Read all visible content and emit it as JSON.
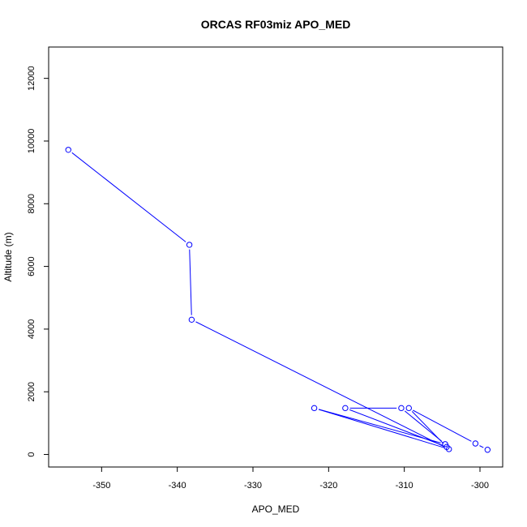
{
  "chart_data": {
    "type": "line",
    "title": "ORCAS RF03miz APO_MED",
    "xlabel": "APO_MED",
    "ylabel": "Altitude (m)",
    "xlim": [
      -357,
      -297
    ],
    "ylim": [
      -400,
      13000
    ],
    "xticks": [
      -350,
      -340,
      -330,
      -320,
      -310,
      -300
    ],
    "yticks": [
      0,
      2000,
      4000,
      6000,
      8000,
      10000,
      12000
    ],
    "grid": false,
    "series": [
      {
        "color": "#0000ff",
        "markers": "open-circle",
        "x": [
          -354.4,
          -338.4,
          -338.1,
          -304.1,
          -321.9,
          -304.6,
          -310.4,
          -317.8,
          -304.4,
          -309.4,
          -300.6,
          -299.0
        ],
        "y": [
          9720,
          6690,
          4300,
          170,
          1480,
          330,
          1480,
          1480,
          240,
          1480,
          350,
          150
        ]
      }
    ]
  }
}
